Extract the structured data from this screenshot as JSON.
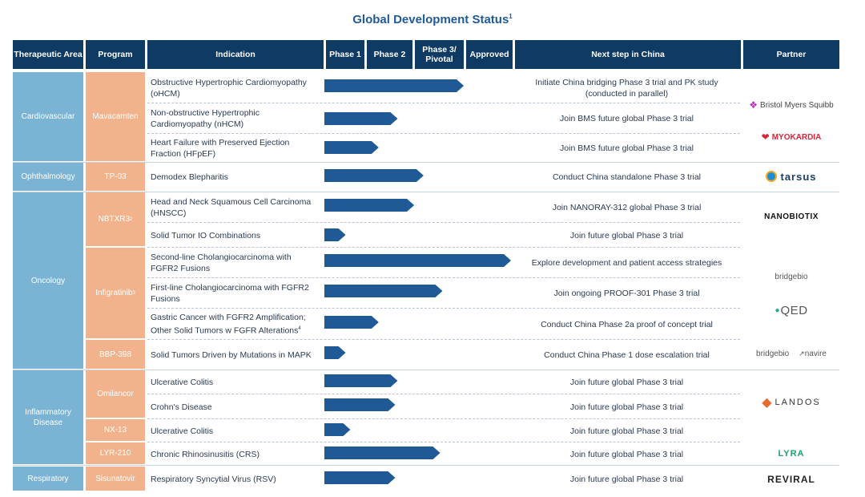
{
  "title": "Global Development Status",
  "title_footnote": "1",
  "colors": {
    "header": "#0f3a64",
    "area": "#7ab3d4",
    "program": "#f2b38c",
    "bar": "#1f5a96",
    "title": "#1f5a96"
  },
  "headers": {
    "area": "Therapeutic Area",
    "program": "Program",
    "indication": "Indication",
    "phase1": "Phase 1",
    "phase2": "Phase 2",
    "phase3": "Phase 3/ Pivotal",
    "approved": "Approved",
    "next": "Next step in China",
    "partner": "Partner"
  },
  "areas": [
    "Cardiovascular",
    "Ophthalmology",
    "Oncology",
    "Inflammatory Disease",
    "Respiratory"
  ],
  "programs": {
    "mavacamten": "Mavacamten",
    "tp03": "TP-03",
    "nbtxr3": "NBTXR3",
    "nbtxr3_fn": "2",
    "infigratinib": "Infigratinib",
    "infigratinib_fn": "3",
    "bbp398": "BBP-398",
    "omilancor": "Omilancor",
    "nx13": "NX-13",
    "lyr210": "LYR-210",
    "sisunatovir": "Sisunatovir"
  },
  "partners": {
    "bms": "Bristol Myers Squibb",
    "myokardia": "MYOKARDIA",
    "tarsus": "tarsus",
    "nanobiotix": "NANOBIOTIX",
    "bridgebio": "bridgebio",
    "qed": "QED",
    "bridgebio2": "bridgebio",
    "navire": "navire",
    "landos": "LANDOS",
    "lyra": "LYRA",
    "reviral": "REVIRAL"
  },
  "chart_data": {
    "type": "bar",
    "orientation": "horizontal",
    "categories": [
      "Obstructive Hypertrophic Cardiomyopathy (oHCM)",
      "Non-obstructive Hypertrophic Cardiomyopathy (nHCM)",
      "Heart Failure with Preserved Ejection Fraction (HFpEF)",
      "Demodex Blepharitis",
      "Head and Neck Squamous Cell Carcinoma (HNSCC)",
      "Solid Tumor IO Combinations",
      "Second-line Cholangiocarcinoma with FGFR2 Fusions",
      "First-line Cholangiocarcinoma with FGFR2 Fusions",
      "Gastric Cancer with FGFR2 Amplification; Other Solid Tumors w FGFR Alterations",
      "Solid Tumors Driven by Mutations in MAPK",
      "Ulcerative Colitis",
      "Crohn's Disease",
      "Ulcerative Colitis",
      "Chronic Rhinosinusitis (CRS)",
      "Respiratory Syncytial Virus (RSV)"
    ],
    "indication_footnotes": [
      "",
      "",
      "",
      "",
      "",
      "",
      "",
      "",
      "4",
      "",
      "",
      "",
      "",
      "",
      ""
    ],
    "phase_stages": [
      "Phase 1",
      "Phase 2",
      "Phase 3/ Pivotal",
      "Approved"
    ],
    "values": [
      2.95,
      1.55,
      1.15,
      2.1,
      1.9,
      0.45,
      3.95,
      2.5,
      1.15,
      0.45,
      1.55,
      1.5,
      0.55,
      2.45,
      1.5
    ],
    "next_steps": [
      "Initiate China bridging Phase 3 trial and PK study (conducted in parallel)",
      "Join BMS future global Phase 3 trial",
      "Join BMS future global Phase 3 trial",
      "Conduct China standalone Phase 3 trial",
      "Join NANORAY-312 global Phase 3 trial",
      "Join future global Phase 3 trial",
      "Explore development and patient access strategies",
      "Join ongoing PROOF-301 Phase 3  trial",
      "Conduct China Phase 2a proof of concept trial",
      "Conduct China Phase 1 dose escalation trial",
      "Join future global Phase 3 trial",
      "Join future global Phase 3 trial",
      "Join future global Phase 3 trial",
      "Join future global Phase 3 trial",
      "Join future global Phase 3 trial"
    ],
    "xlim": [
      0,
      4
    ]
  }
}
